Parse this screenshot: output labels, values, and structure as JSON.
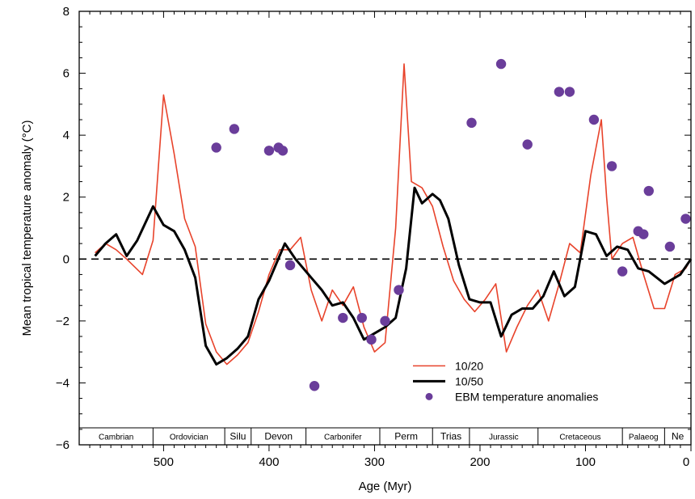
{
  "chart_data": {
    "type": "line",
    "title": "",
    "xlabel": "Age (Myr)",
    "ylabel": "Mean tropical temperature anomaly (°C)",
    "xlim": [
      580,
      0
    ],
    "ylim": [
      -6,
      8
    ],
    "x_ticks": [
      500,
      400,
      300,
      200,
      100,
      0
    ],
    "y_ticks": [
      -6,
      -4,
      -2,
      0,
      2,
      4,
      6,
      8
    ],
    "zero_line": {
      "y": 0,
      "style": "dashed"
    },
    "grid": false,
    "legend_position": "lower-middle",
    "colors": {
      "10/20": "#e8432b",
      "10/50": "#000000",
      "EBM temperature anomalies": "#6a3d9a"
    },
    "series": [
      {
        "name": "10/20",
        "type": "line",
        "x": [
          565,
          555,
          545,
          535,
          520,
          510,
          500,
          490,
          480,
          470,
          460,
          450,
          440,
          430,
          420,
          410,
          400,
          390,
          380,
          370,
          360,
          350,
          340,
          330,
          320,
          310,
          300,
          290,
          280,
          272,
          265,
          255,
          245,
          235,
          225,
          215,
          205,
          195,
          185,
          175,
          165,
          155,
          145,
          135,
          125,
          115,
          105,
          95,
          85,
          80,
          75,
          65,
          55,
          45,
          35,
          25,
          15,
          5,
          0
        ],
        "y": [
          0.2,
          0.5,
          0.3,
          0.0,
          -0.5,
          0.6,
          5.3,
          3.4,
          1.3,
          0.4,
          -2.1,
          -3.0,
          -3.4,
          -3.1,
          -2.7,
          -1.7,
          -0.5,
          0.3,
          0.3,
          0.7,
          -1.0,
          -2.0,
          -1.0,
          -1.5,
          -0.9,
          -2.2,
          -3.0,
          -2.7,
          1.0,
          6.3,
          2.5,
          2.3,
          1.7,
          0.4,
          -0.7,
          -1.3,
          -1.7,
          -1.3,
          -0.8,
          -3.0,
          -2.2,
          -1.5,
          -1.0,
          -2.0,
          -0.8,
          0.5,
          0.2,
          2.7,
          4.5,
          2.0,
          0.0,
          0.5,
          0.7,
          -0.5,
          -1.6,
          -1.6,
          -0.5,
          -0.3,
          0.0
        ]
      },
      {
        "name": "10/50",
        "type": "line",
        "x": [
          565,
          555,
          545,
          535,
          525,
          510,
          500,
          490,
          480,
          470,
          460,
          450,
          440,
          430,
          420,
          410,
          400,
          385,
          375,
          360,
          350,
          340,
          330,
          320,
          310,
          300,
          290,
          280,
          270,
          262,
          255,
          245,
          238,
          230,
          220,
          210,
          200,
          190,
          180,
          170,
          160,
          150,
          140,
          130,
          120,
          110,
          100,
          90,
          80,
          70,
          60,
          50,
          40,
          25,
          10,
          0
        ],
        "y": [
          0.1,
          0.5,
          0.8,
          0.1,
          0.6,
          1.7,
          1.1,
          0.9,
          0.3,
          -0.6,
          -2.8,
          -3.4,
          -3.2,
          -2.9,
          -2.5,
          -1.3,
          -0.7,
          0.5,
          0.0,
          -0.6,
          -1.0,
          -1.5,
          -1.4,
          -1.9,
          -2.6,
          -2.4,
          -2.2,
          -1.9,
          -0.3,
          2.3,
          1.8,
          2.1,
          1.9,
          1.3,
          -0.2,
          -1.3,
          -1.4,
          -1.4,
          -2.5,
          -1.8,
          -1.6,
          -1.6,
          -1.2,
          -0.4,
          -1.2,
          -0.9,
          0.9,
          0.8,
          0.1,
          0.4,
          0.3,
          -0.3,
          -0.4,
          -0.8,
          -0.5,
          0.0
        ]
      },
      {
        "name": "EBM temperature anomalies",
        "type": "scatter",
        "x": [
          450,
          433,
          400,
          391,
          387,
          380,
          357,
          330,
          312,
          303,
          290,
          277,
          208,
          180,
          155,
          125,
          115,
          92,
          75,
          65,
          50,
          45,
          40,
          20,
          5
        ],
        "y": [
          3.6,
          4.2,
          3.5,
          3.6,
          3.5,
          -0.2,
          -4.1,
          -1.9,
          -1.9,
          -2.6,
          -2.0,
          -1.0,
          4.4,
          6.3,
          3.7,
          5.4,
          5.4,
          4.5,
          3.0,
          -0.4,
          0.9,
          0.8,
          2.2,
          0.4,
          1.3
        ]
      }
    ],
    "periods": [
      {
        "label": "Cambrian",
        "from": 580,
        "to": 510
      },
      {
        "label": "Ordovician",
        "from": 510,
        "to": 442
      },
      {
        "label": "Silu",
        "from": 442,
        "to": 417
      },
      {
        "label": "Devon",
        "from": 417,
        "to": 365
      },
      {
        "label": "Carbonifer",
        "from": 365,
        "to": 295
      },
      {
        "label": "Perm",
        "from": 295,
        "to": 245
      },
      {
        "label": "Trias",
        "from": 245,
        "to": 210
      },
      {
        "label": "Jurassic",
        "from": 210,
        "to": 145
      },
      {
        "label": "Cretaceous",
        "from": 145,
        "to": 65
      },
      {
        "label": "Palaeog",
        "from": 65,
        "to": 25
      },
      {
        "label": "Ne",
        "from": 25,
        "to": 0
      }
    ]
  }
}
